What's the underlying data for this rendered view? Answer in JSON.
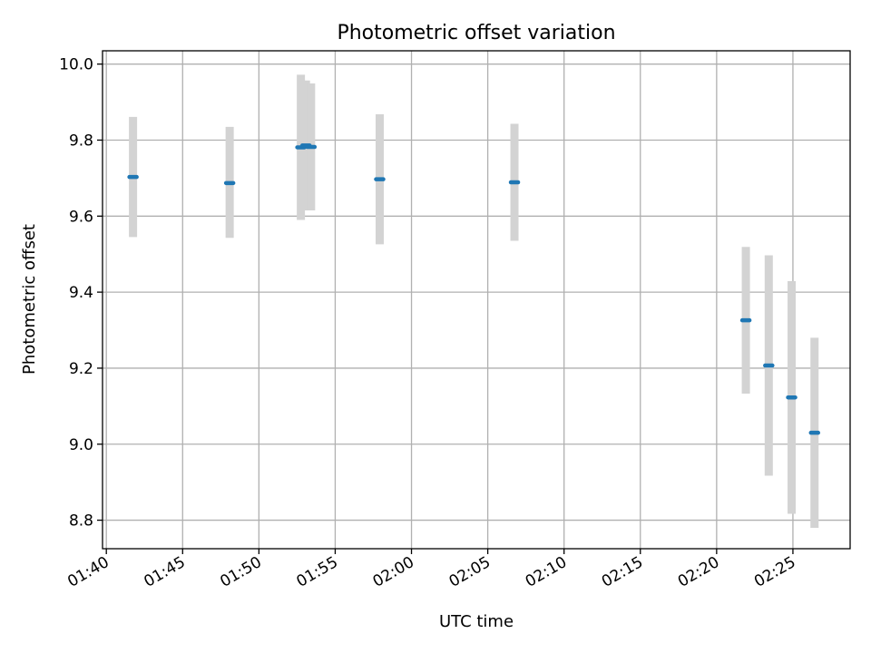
{
  "chart_data": {
    "type": "scatter",
    "title": "Photometric offset variation",
    "xlabel": "UTC time",
    "ylabel": "Photometric offset",
    "x_tick_labels": [
      "01:40",
      "01:45",
      "01:50",
      "01:55",
      "02:00",
      "02:05",
      "02:10",
      "02:15",
      "02:20",
      "02:25"
    ],
    "x_ticks": [
      "01:40",
      "01:45",
      "01:50",
      "01:55",
      "02:00",
      "02:05",
      "02:10",
      "02:15",
      "02:20",
      "02:25"
    ],
    "y_ticks": [
      8.8,
      9.0,
      9.2,
      9.4,
      9.6,
      9.8,
      10.0
    ],
    "y_tick_labels": [
      "8.8",
      "9.0",
      "9.2",
      "9.4",
      "9.6",
      "9.8",
      "10.0"
    ],
    "xlim": [
      "01:39:45",
      "02:28:45"
    ],
    "ylim": [
      8.725,
      10.035
    ],
    "grid": true,
    "legend": false,
    "colors": {
      "marker": "#1f77b4",
      "errorbar": "#d3d3d3",
      "grid": "#b0b0b0"
    },
    "series": [
      {
        "points": [
          {
            "t": "01:41:45",
            "y": 9.703,
            "err_low": 0.158,
            "err_high": 0.158
          },
          {
            "t": "01:48:05",
            "y": 9.687,
            "err_low": 0.144,
            "err_high": 0.148
          },
          {
            "t": "01:52:45",
            "y": 9.781,
            "err_low": 0.191,
            "err_high": 0.191
          },
          {
            "t": "01:53:05",
            "y": 9.786,
            "err_low": 0.171,
            "err_high": 0.171
          },
          {
            "t": "01:53:25",
            "y": 9.782,
            "err_low": 0.167,
            "err_high": 0.167
          },
          {
            "t": "01:57:55",
            "y": 9.697,
            "err_low": 0.171,
            "err_high": 0.171
          },
          {
            "t": "02:06:45",
            "y": 9.689,
            "err_low": 0.154,
            "err_high": 0.154
          },
          {
            "t": "02:21:55",
            "y": 9.326,
            "err_low": 0.193,
            "err_high": 0.193
          },
          {
            "t": "02:23:25",
            "y": 9.207,
            "err_low": 0.29,
            "err_high": 0.29
          },
          {
            "t": "02:24:55",
            "y": 9.123,
            "err_low": 0.306,
            "err_high": 0.306
          },
          {
            "t": "02:26:25",
            "y": 9.03,
            "err_low": 0.25,
            "err_high": 0.25
          }
        ]
      }
    ]
  }
}
